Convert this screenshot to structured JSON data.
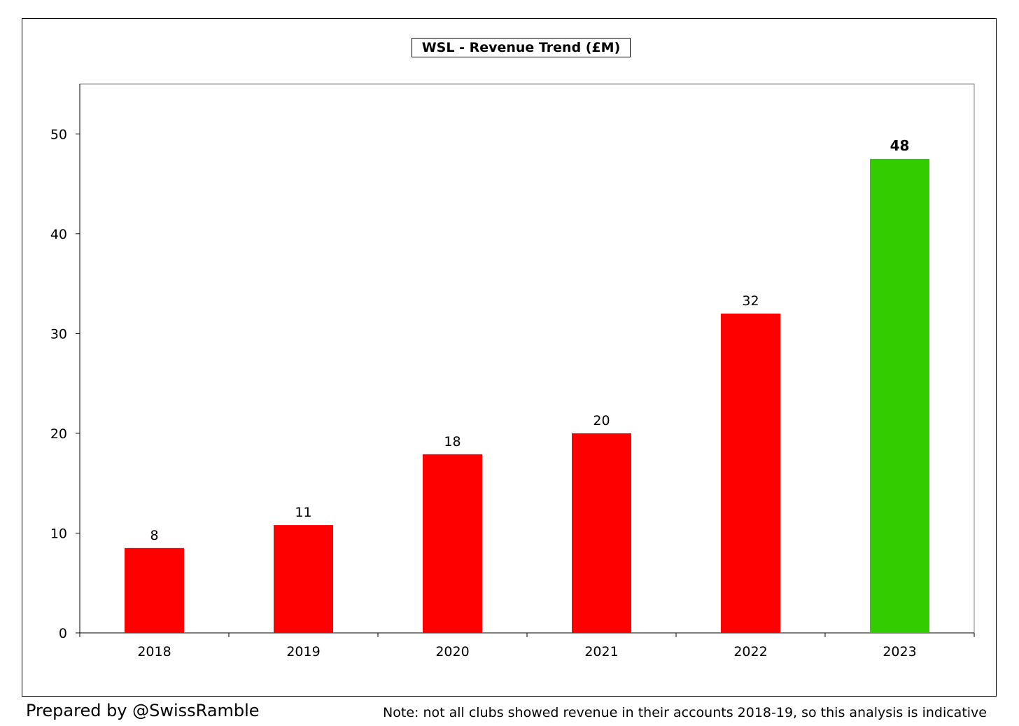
{
  "chart_data": {
    "type": "bar",
    "title": "WSL - Revenue Trend (£M)",
    "categories": [
      "2018",
      "2019",
      "2020",
      "2021",
      "2022",
      "2023"
    ],
    "values": [
      8.5,
      10.8,
      17.9,
      20.0,
      32.0,
      47.5
    ],
    "data_labels": [
      "8",
      "11",
      "18",
      "20",
      "32",
      "48"
    ],
    "bar_colors": [
      "#ff0000",
      "#ff0000",
      "#ff0000",
      "#ff0000",
      "#ff0000",
      "#33cc00"
    ],
    "highlight_label_bold": [
      false,
      false,
      false,
      false,
      false,
      true
    ],
    "y_ticks": [
      0,
      10,
      20,
      30,
      40,
      50
    ],
    "ylim": [
      0,
      55
    ],
    "xlabel": "",
    "ylabel": "",
    "grid": false,
    "legend": "none"
  },
  "footer": {
    "credit": "Prepared by @SwissRamble",
    "note": "Note: not all clubs showed revenue in their accounts 2018-19, so this analysis is indicative"
  }
}
